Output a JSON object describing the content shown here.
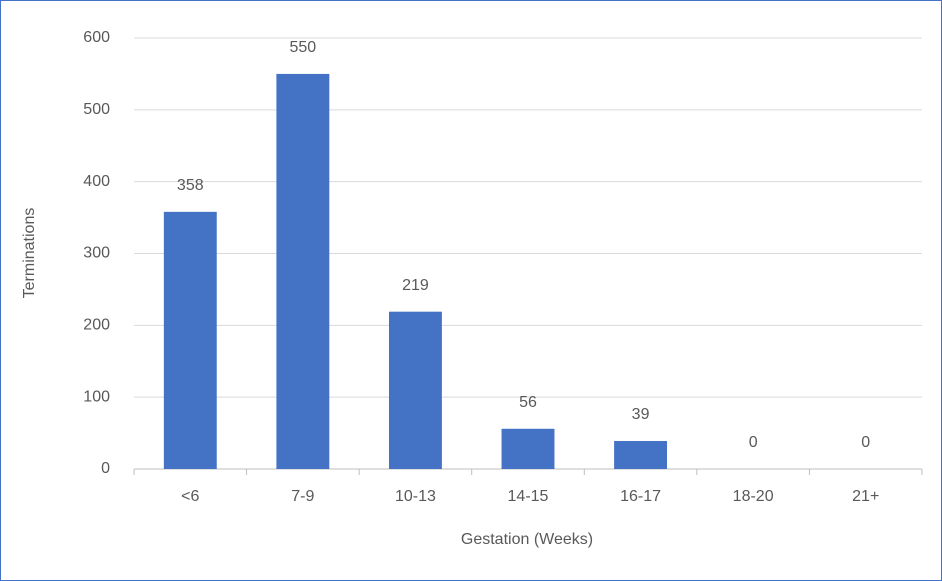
{
  "chart_data": {
    "type": "bar",
    "x_label": "Gestation (Weeks)",
    "y_label": "Terminations",
    "categories": [
      "<6",
      "7-9",
      "10-13",
      "14-15",
      "16-17",
      "18-20",
      "21+"
    ],
    "values": [
      358,
      550,
      219,
      56,
      39,
      0,
      0
    ],
    "color": "#4472c4",
    "ylim": [
      0,
      600
    ],
    "yticks": [
      0,
      100,
      200,
      300,
      400,
      500,
      600
    ],
    "grid": true,
    "data_labels": true
  }
}
